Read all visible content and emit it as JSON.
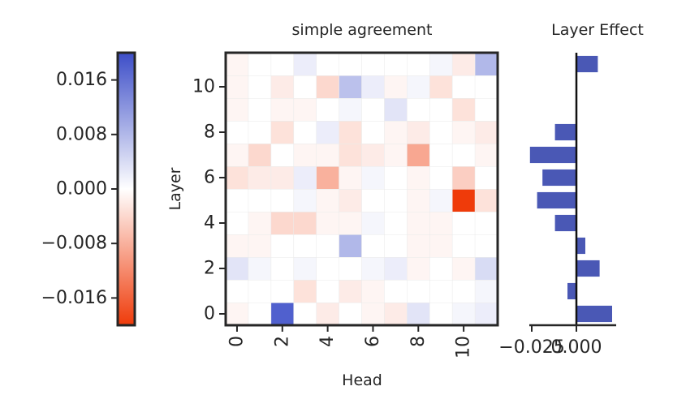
{
  "chart_data": [
    {
      "type": "heatmap",
      "title": "simple agreement",
      "xlabel": "Head",
      "ylabel": "Layer",
      "x_ticks": [
        "0",
        "2",
        "4",
        "6",
        "8",
        "10"
      ],
      "y_ticks": [
        "0",
        "2",
        "4",
        "6",
        "8",
        "10"
      ],
      "cols": 12,
      "rows": 12,
      "colormap": {
        "low": "#ef3b0a",
        "mid": "#ffffff",
        "high": "#3d4ec8"
      },
      "clim": [
        -0.02,
        0.02
      ],
      "grid": false,
      "values_by_layer": [
        [
          -0.001,
          0.0,
          0.018,
          0.0,
          -0.002,
          0.0,
          -0.001,
          -0.002,
          0.003,
          0.0,
          0.001,
          0.002
        ],
        [
          0.0,
          0.0,
          0.0,
          -0.003,
          0.0,
          -0.002,
          -0.001,
          0.0,
          0.0,
          0.0,
          0.0,
          0.001
        ],
        [
          0.003,
          0.001,
          0.0,
          0.001,
          0.0,
          0.0,
          0.001,
          0.002,
          -0.001,
          0.0,
          -0.001,
          0.004
        ],
        [
          -0.001,
          -0.001,
          0.0,
          0.0,
          0.0,
          0.008,
          0.0,
          0.0,
          -0.001,
          -0.001,
          0.0,
          0.0
        ],
        [
          0.0,
          -0.001,
          -0.004,
          -0.004,
          -0.001,
          -0.001,
          0.001,
          0.0,
          -0.001,
          -0.001,
          0.0,
          0.0
        ],
        [
          0.0,
          0.0,
          0.0,
          0.001,
          -0.001,
          -0.002,
          0.0,
          0.0,
          -0.001,
          0.001,
          -0.02,
          -0.003
        ],
        [
          -0.003,
          -0.002,
          -0.002,
          0.002,
          -0.008,
          -0.001,
          0.001,
          0.0,
          -0.001,
          0.0,
          -0.005,
          0.0
        ],
        [
          -0.001,
          -0.004,
          0.0,
          -0.001,
          -0.001,
          -0.003,
          -0.002,
          -0.001,
          -0.009,
          0.0,
          0.0,
          -0.001
        ],
        [
          0.0,
          0.0,
          -0.003,
          0.0,
          0.002,
          -0.003,
          0.0,
          -0.001,
          -0.002,
          0.0,
          -0.001,
          -0.002
        ],
        [
          -0.001,
          0.0,
          -0.001,
          -0.001,
          0.0,
          0.001,
          0.0,
          0.003,
          0.0,
          0.0,
          -0.003,
          0.0
        ],
        [
          -0.001,
          0.0,
          -0.002,
          0.0,
          -0.004,
          0.007,
          0.002,
          -0.001,
          0.001,
          -0.003,
          0.0,
          0.0
        ],
        [
          -0.001,
          0.0,
          0.0,
          0.002,
          0.0,
          0.0,
          0.0,
          0.0,
          0.0,
          0.001,
          -0.002,
          0.008
        ]
      ]
    },
    {
      "type": "colorbar",
      "ticks": [
        "0.016",
        "0.008",
        "0.000",
        "−0.008",
        "−0.016"
      ],
      "tick_values": [
        0.016,
        0.008,
        0.0,
        -0.008,
        -0.016
      ],
      "range": [
        -0.02,
        0.02
      ]
    },
    {
      "type": "bar",
      "orientation": "horizontal",
      "title": "Layer Effect",
      "categories": [
        "0",
        "1",
        "2",
        "3",
        "4",
        "5",
        "6",
        "7",
        "8",
        "9",
        "10",
        "11"
      ],
      "values": [
        0.02,
        -0.005,
        0.013,
        0.005,
        -0.012,
        -0.022,
        -0.019,
        -0.026,
        -0.012,
        0.0,
        0.0,
        0.012
      ],
      "x_ticks": [
        "−0.025",
        "0.000"
      ],
      "x_tick_values": [
        -0.025,
        0.0
      ],
      "xlim": [
        -0.027,
        0.023
      ],
      "bar_color": "#4a58b5"
    }
  ]
}
